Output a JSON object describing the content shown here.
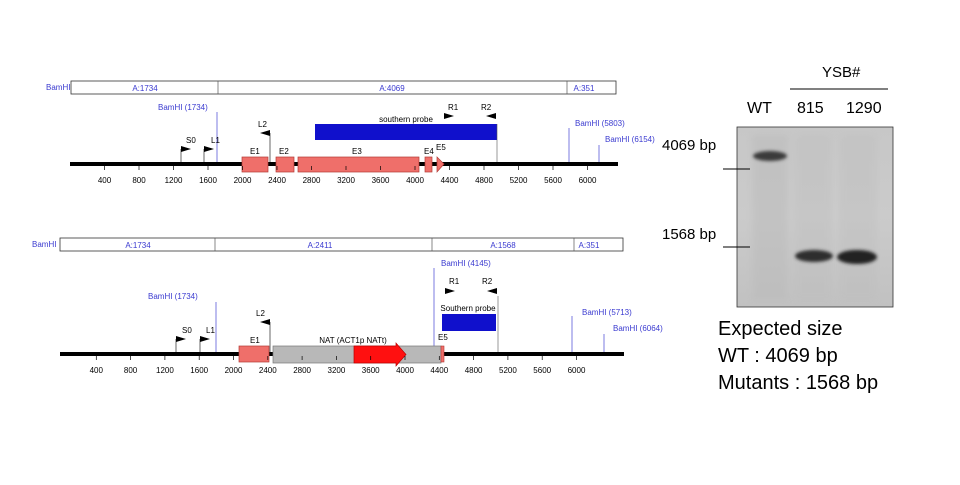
{
  "colors": {
    "backbone": "#000000",
    "exon": "#ef6f6a",
    "exon_stroke": "#b23a35",
    "probe": "#1010cc",
    "nat": "#b8b8b8",
    "cassette_arrow": "#ff1010",
    "label_blue": "#3a3ad0",
    "blot_bg": "#c4c4c4"
  },
  "wt_map": {
    "enzyme_tag": "BamHI",
    "fragments": [
      "A:1734",
      "A:4069",
      "A:351"
    ],
    "sites": [
      "BamHI (1734)",
      "BamHI (5803)",
      "BamHI (6154)"
    ],
    "probe_label": "southern probe",
    "exon_labels": [
      "E1",
      "E2",
      "E3",
      "E4",
      "E5"
    ],
    "primers": [
      "S0",
      "L1",
      "L2",
      "R1",
      "R2"
    ],
    "ruler": [
      "400",
      "800",
      "1200",
      "1600",
      "2000",
      "2400",
      "2800",
      "3200",
      "3600",
      "4000",
      "4400",
      "4800",
      "5200",
      "5600",
      "6000"
    ]
  },
  "mutant_map": {
    "enzyme_tag": "BamHI",
    "fragments": [
      "A:1734",
      "A:2411",
      "A:1568",
      "A:351"
    ],
    "sites": [
      "BamHI (1734)",
      "BamHI (4145)",
      "BamHI (5713)",
      "BamHI (6064)"
    ],
    "probe_label": "Southern probe",
    "exon_labels": [
      "E1",
      "E5"
    ],
    "cassette_label": "NAT (ACT1p NATt)",
    "primers": [
      "S0",
      "L1",
      "L2",
      "R1",
      "R2"
    ],
    "ruler": [
      "400",
      "800",
      "1200",
      "1600",
      "2000",
      "2400",
      "2800",
      "3200",
      "3600",
      "4000",
      "4400",
      "4800",
      "5200",
      "5600",
      "6000"
    ]
  },
  "blot": {
    "group_label": "YSB#",
    "lanes": [
      "WT",
      "815",
      "1290"
    ],
    "markers": [
      "4069 bp",
      "1568 bp"
    ]
  },
  "expected": {
    "title": "Expected size",
    "wt": "WT : 4069 bp",
    "mutants": "Mutants : 1568 bp"
  }
}
